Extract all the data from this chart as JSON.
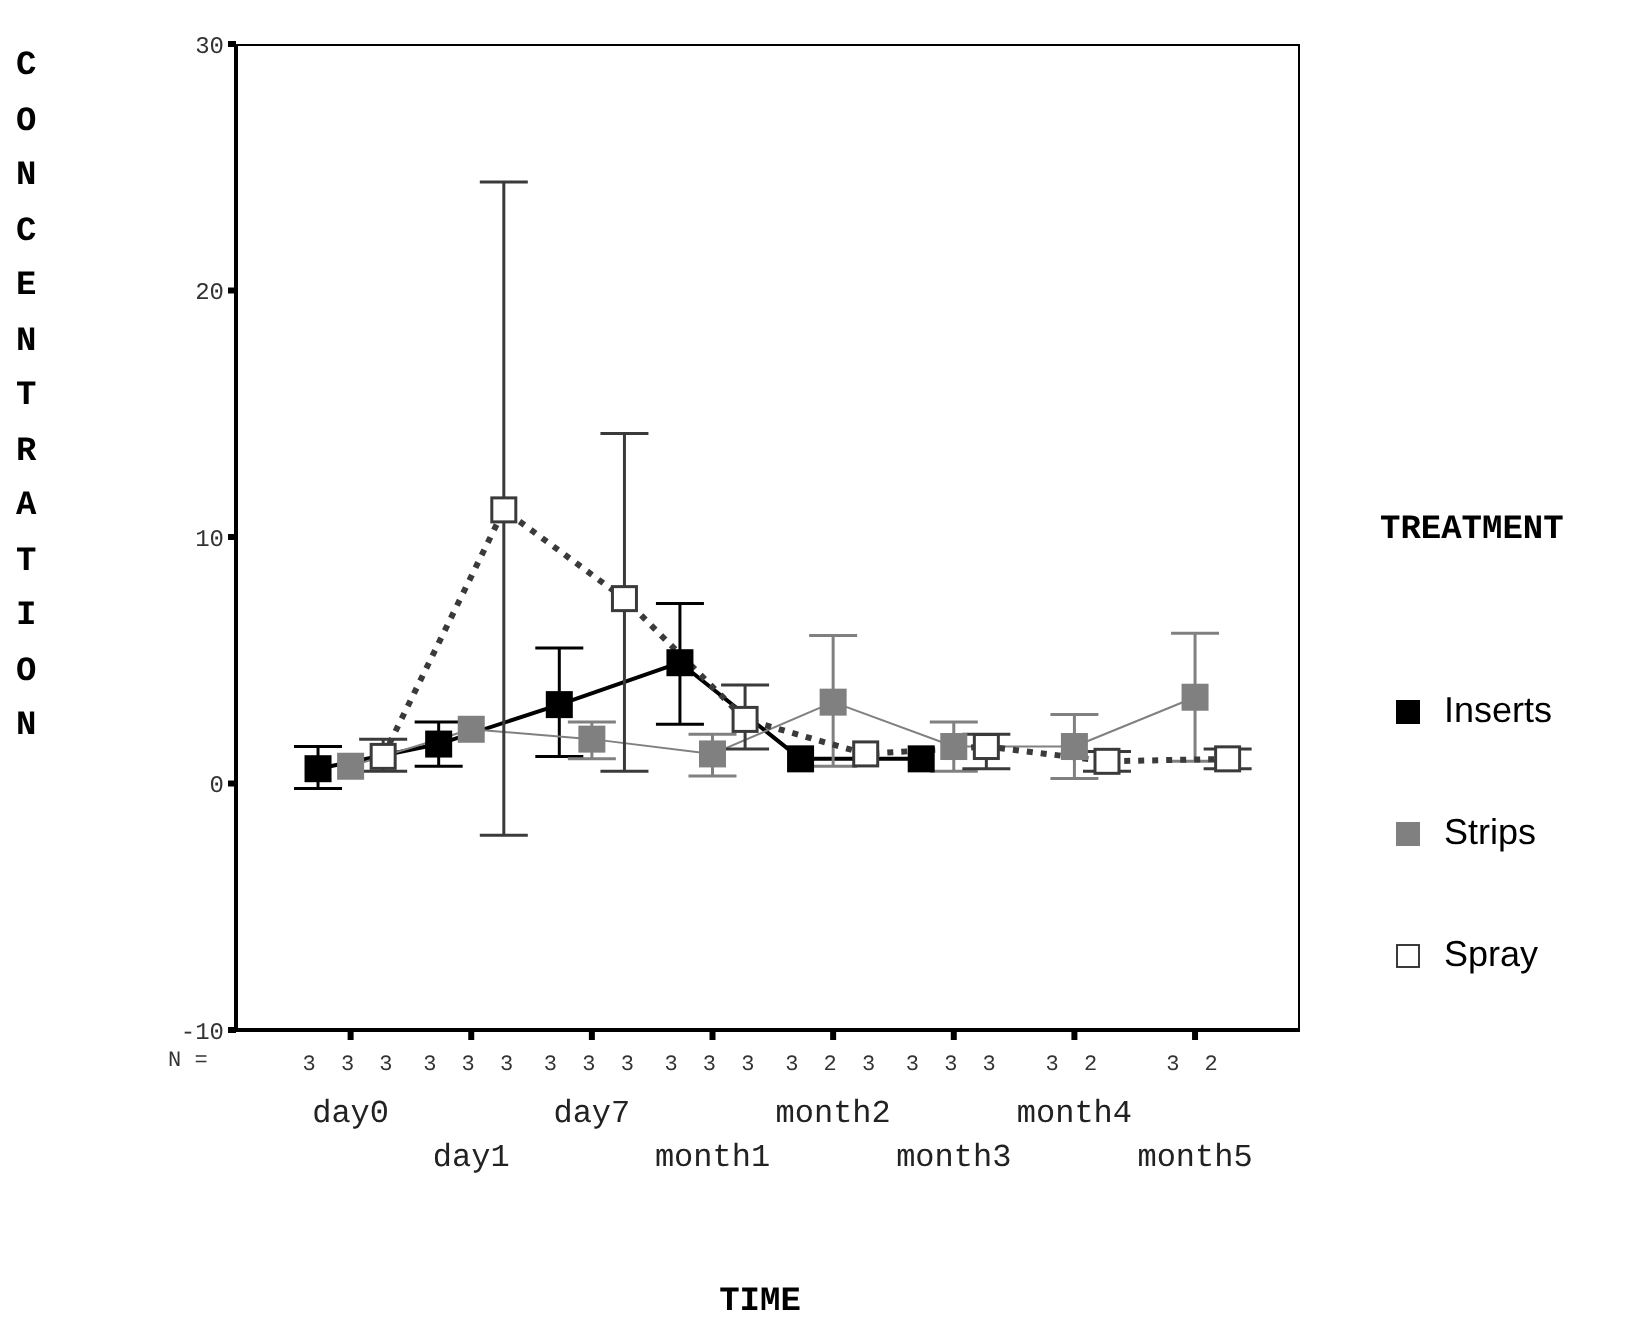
{
  "chart_data": {
    "type": "line",
    "xlabel": "TIME",
    "ylabel": "CONCENTRATION",
    "legend_title": "TREATMENT",
    "legend": "right",
    "marker": "square",
    "categories": [
      "day0",
      "day1",
      "day7",
      "month1",
      "month2",
      "month3",
      "month4",
      "month5"
    ],
    "ylim": [
      -10,
      30
    ],
    "yticks": [
      -10,
      0,
      10,
      20,
      30
    ],
    "annotations": [
      "N =",
      "3 3 3",
      "3 3 3",
      "3 3 3",
      "3 3 3",
      "3 2 3",
      "3 3 3",
      "3 2",
      "3 2"
    ],
    "series": [
      {
        "name": "Inserts",
        "color": "#000000",
        "line_style": "solid",
        "values": [
          0.6,
          1.6,
          3.2,
          4.9,
          1.0,
          1.0,
          null,
          null
        ],
        "errors": [
          [
            -0.2,
            1.5
          ],
          [
            0.7,
            2.5
          ],
          [
            1.1,
            5.5
          ],
          [
            2.4,
            7.3
          ],
          null,
          null,
          null,
          null
        ]
      },
      {
        "name": "Strips",
        "color": "#808080",
        "line_style": "solid",
        "values": [
          0.7,
          2.2,
          1.8,
          1.2,
          3.3,
          1.5,
          1.5,
          3.5
        ],
        "errors": [
          null,
          null,
          [
            1.0,
            2.5
          ],
          [
            0.3,
            2.0
          ],
          [
            0.7,
            6.0
          ],
          [
            0.5,
            2.5
          ],
          [
            0.2,
            2.8
          ],
          [
            0.9,
            6.1
          ]
        ]
      },
      {
        "name": "Spray",
        "color": "#3a3a3a",
        "line_style": "dotted",
        "values": [
          1.1,
          11.1,
          7.5,
          2.6,
          1.2,
          1.5,
          0.9,
          1.0
        ],
        "errors": [
          [
            0.5,
            1.8
          ],
          [
            -2.1,
            24.4
          ],
          [
            0.5,
            14.2
          ],
          [
            1.4,
            4.0
          ],
          null,
          [
            0.6,
            2.0
          ],
          [
            0.5,
            1.3
          ],
          [
            0.6,
            1.4
          ]
        ]
      }
    ]
  }
}
